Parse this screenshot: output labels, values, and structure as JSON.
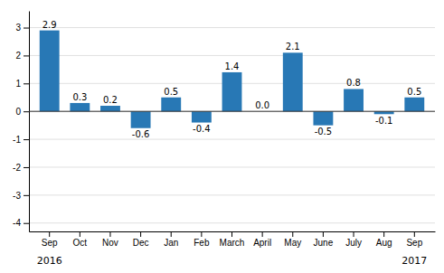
{
  "chart_data": {
    "type": "bar",
    "categories": [
      "Sep",
      "Oct",
      "Nov",
      "Dec",
      "Jan",
      "Feb",
      "March",
      "April",
      "May",
      "June",
      "July",
      "Aug",
      "Sep"
    ],
    "values": [
      2.9,
      0.3,
      0.2,
      -0.6,
      0.5,
      -0.4,
      1.4,
      0.0,
      2.1,
      -0.5,
      0.8,
      -0.1,
      0.5
    ],
    "value_labels": [
      "2.9",
      "0.3",
      "0.2",
      "-0.6",
      "0.5",
      "-0.4",
      "1.4",
      "0.0",
      "2.1",
      "-0.5",
      "0.8",
      "-0.1",
      "0.5"
    ],
    "color": "#2878b5",
    "ylim": [
      -4.3,
      3.6
    ],
    "yticks": [
      -4,
      -3,
      -2,
      -1,
      0,
      1,
      2,
      3
    ],
    "grid": true,
    "data_labels": true,
    "annotations": [
      {
        "text": "2016",
        "x": 0
      },
      {
        "text": "2017",
        "x": 12
      }
    ]
  }
}
